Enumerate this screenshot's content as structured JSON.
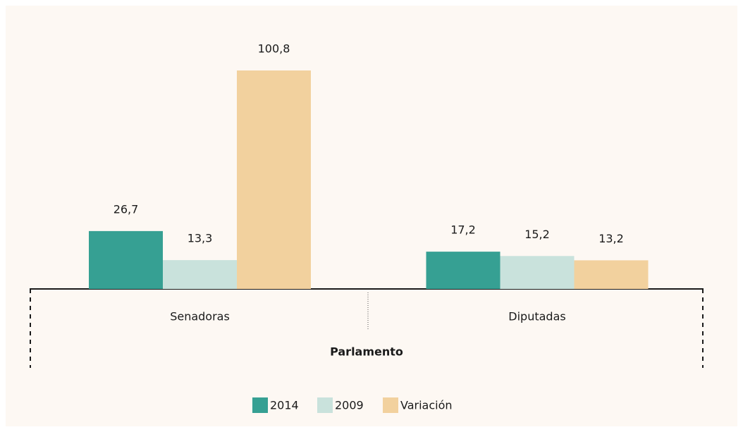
{
  "chart_data": {
    "type": "bar",
    "xlabel": "Parlamento",
    "categories": [
      "Senadoras",
      "Diputadas"
    ],
    "series": [
      {
        "name": "2014",
        "color": "#36a093",
        "values": [
          26.7,
          17.2
        ],
        "value_labels": [
          "26,7",
          "17,2"
        ]
      },
      {
        "name": "2009",
        "color": "#c9e2dc",
        "values": [
          13.3,
          15.2
        ],
        "value_labels": [
          "13,3",
          "15,2"
        ]
      },
      {
        "name": "Variación",
        "color": "#f2d19e",
        "values": [
          100.8,
          13.2
        ],
        "value_labels": [
          "100,8",
          "13,2"
        ]
      }
    ],
    "legend": "bottom"
  }
}
